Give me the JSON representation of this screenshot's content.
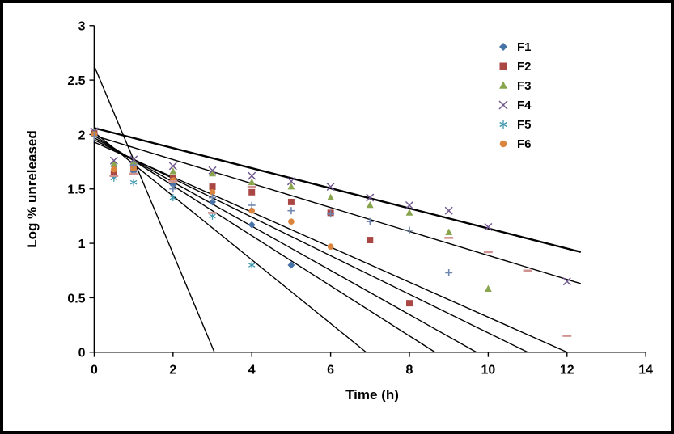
{
  "figure": {
    "background": "#FFFFFF",
    "border_color": "#000000"
  },
  "chart_data": {
    "type": "scatter",
    "title": "",
    "xlabel": "Time (h)",
    "ylabel": "Log % unreleased",
    "xlim": [
      0,
      14
    ],
    "ylim": [
      0,
      3
    ],
    "x_ticks": [
      0,
      2,
      4,
      6,
      8,
      10,
      12,
      14
    ],
    "y_ticks": [
      0,
      0.5,
      1,
      1.5,
      2,
      2.5,
      3
    ],
    "grid": false,
    "legend_position": "inside-top-right",
    "axis_color": "#000000",
    "series": [
      {
        "name": "F1",
        "marker": "diamond",
        "color": "#4572A7",
        "legend": true,
        "points": [
          [
            0,
            2.01
          ],
          [
            0.5,
            1.71
          ],
          [
            1,
            1.66
          ],
          [
            2,
            1.54
          ],
          [
            3,
            1.38
          ],
          [
            4,
            1.17
          ],
          [
            5,
            0.8
          ]
        ]
      },
      {
        "name": "F2",
        "marker": "square",
        "color": "#AA4643",
        "legend": true,
        "points": [
          [
            0,
            2.01
          ],
          [
            0.5,
            1.64
          ],
          [
            1,
            1.7
          ],
          [
            2,
            1.6
          ],
          [
            3,
            1.52
          ],
          [
            4,
            1.47
          ],
          [
            5,
            1.38
          ],
          [
            6,
            1.28
          ],
          [
            7,
            1.03
          ],
          [
            8,
            0.45
          ]
        ]
      },
      {
        "name": "F3",
        "marker": "triangle",
        "color": "#89A54E",
        "legend": true,
        "points": [
          [
            0,
            2.02
          ],
          [
            0.5,
            1.73
          ],
          [
            1,
            1.75
          ],
          [
            2,
            1.66
          ],
          [
            3,
            1.64
          ],
          [
            4,
            1.56
          ],
          [
            5,
            1.52
          ],
          [
            6,
            1.42
          ],
          [
            7,
            1.35
          ],
          [
            8,
            1.28
          ],
          [
            9,
            1.1
          ],
          [
            10,
            0.58
          ]
        ]
      },
      {
        "name": "F4",
        "marker": "x",
        "color": "#71588F",
        "legend": true,
        "points": [
          [
            0,
            2.03
          ],
          [
            0.5,
            1.76
          ],
          [
            1,
            1.77
          ],
          [
            2,
            1.71
          ],
          [
            3,
            1.67
          ],
          [
            4,
            1.62
          ],
          [
            5,
            1.57
          ],
          [
            6,
            1.52
          ],
          [
            7,
            1.42
          ],
          [
            8,
            1.35
          ],
          [
            9,
            1.3
          ],
          [
            10,
            1.15
          ],
          [
            12,
            0.65
          ]
        ]
      },
      {
        "name": "F5",
        "marker": "asterisk",
        "color": "#4198AF",
        "legend": true,
        "points": [
          [
            0,
            2.0
          ],
          [
            0.5,
            1.6
          ],
          [
            1,
            1.56
          ],
          [
            2,
            1.42
          ],
          [
            3,
            1.25
          ],
          [
            4,
            0.8
          ]
        ]
      },
      {
        "name": "F6",
        "marker": "circle",
        "color": "#DB843D",
        "legend": true,
        "points": [
          [
            0,
            2.0
          ],
          [
            0.5,
            1.68
          ],
          [
            1,
            1.69
          ],
          [
            2,
            1.58
          ],
          [
            3,
            1.47
          ],
          [
            4,
            1.3
          ],
          [
            5,
            1.2
          ],
          [
            6,
            0.97
          ]
        ]
      },
      {
        "name": "",
        "marker": "plus",
        "color": "#6F87AE",
        "legend": false,
        "points": [
          [
            0,
            1.98
          ],
          [
            1,
            1.72
          ],
          [
            2,
            1.5
          ],
          [
            3,
            1.42
          ],
          [
            4,
            1.35
          ],
          [
            5,
            1.3
          ],
          [
            6,
            1.27
          ],
          [
            7,
            1.2
          ],
          [
            8,
            1.12
          ],
          [
            9,
            0.73
          ]
        ]
      },
      {
        "name": "",
        "marker": "dash",
        "color": "#D19392",
        "legend": false,
        "points": [
          [
            0.5,
            1.62
          ],
          [
            1,
            1.64
          ],
          [
            2,
            1.57
          ],
          [
            3,
            1.28
          ],
          [
            4,
            1.52
          ],
          [
            9,
            1.05
          ],
          [
            10,
            0.92
          ],
          [
            11,
            0.75
          ],
          [
            12,
            0.15
          ]
        ]
      }
    ],
    "trend_lines": [
      {
        "x1": 0,
        "y1": 2.63,
        "x2": 3.05,
        "y2": 0,
        "width": 1.4
      },
      {
        "x1": 0,
        "y1": 2.02,
        "x2": 6.9,
        "y2": 0,
        "width": 1.4
      },
      {
        "x1": 0,
        "y1": 1.99,
        "x2": 8.65,
        "y2": 0,
        "width": 1.4
      },
      {
        "x1": 0,
        "y1": 1.97,
        "x2": 9.7,
        "y2": 0,
        "width": 1.4
      },
      {
        "x1": 0,
        "y1": 1.95,
        "x2": 11.0,
        "y2": 0,
        "width": 1.4
      },
      {
        "x1": 0,
        "y1": 1.93,
        "x2": 12.0,
        "y2": 0,
        "width": 1.4
      },
      {
        "x1": 0,
        "y1": 1.99,
        "x2": 12.35,
        "y2": 0.63,
        "width": 1.4
      },
      {
        "x1": 0,
        "y1": 2.06,
        "x2": 12.35,
        "y2": 0.92,
        "width": 2.4
      }
    ]
  }
}
